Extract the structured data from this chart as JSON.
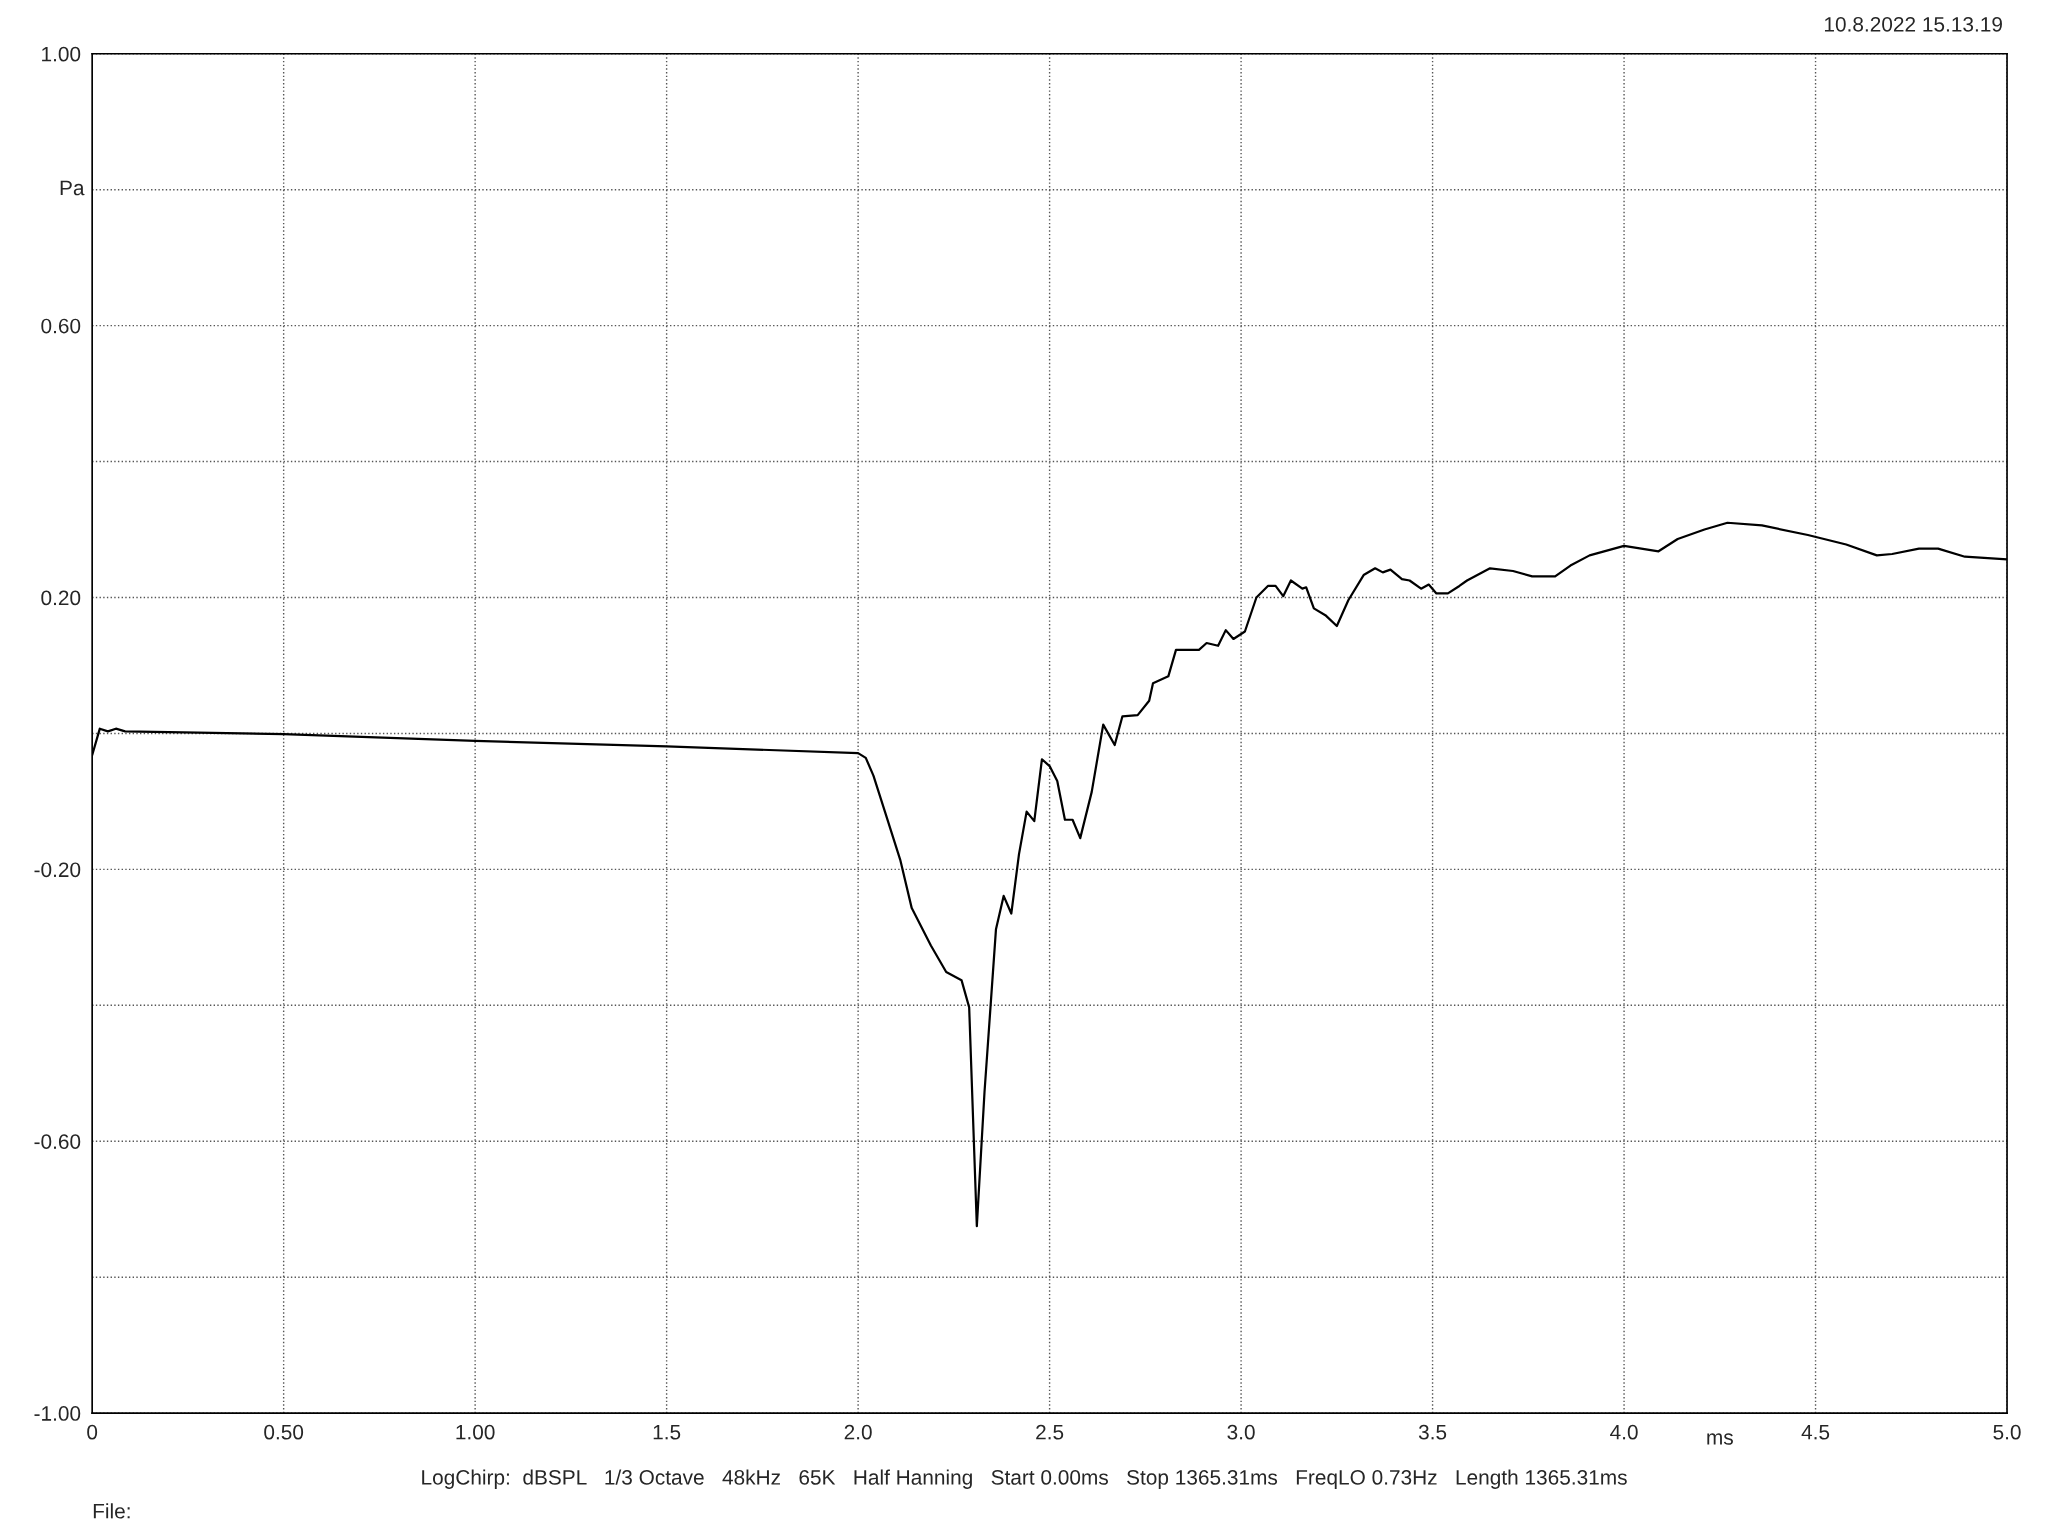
{
  "chart_data": {
    "type": "line",
    "xlabel": "ms",
    "ylabel": "Pa",
    "annotations": [
      "10.8.2022 15.13.19",
      "LogChirp:  dBSPL   1/3 Octave   48kHz   65K   Half Hanning   Start 0.00ms   Stop 1365.31ms   FreqLO 0.73Hz   Length 1365.31ms",
      "File:"
    ],
    "xlim": [
      0,
      5.0
    ],
    "xticks": [
      0,
      {
        "value": 0.5,
        "label": "0.50"
      },
      {
        "value": 1.0,
        "label": "1.00"
      },
      1.5,
      {
        "value": 2.0,
        "label": "2.0"
      },
      2.5,
      {
        "value": 3.0,
        "label": "3.0"
      },
      3.5,
      {
        "value": 4.0,
        "label": "4.0"
      },
      4.5,
      {
        "value": 5.0,
        "label": "5.0"
      }
    ],
    "ylim": [
      -1.0,
      1.0
    ],
    "yticks": [
      {
        "value": -1.0,
        "label": "-1.00"
      },
      {
        "value": -0.8,
        "label": null
      },
      {
        "value": -0.6,
        "label": "-0.60"
      },
      {
        "value": -0.4,
        "label": null
      },
      {
        "value": -0.2,
        "label": "-0.20"
      },
      {
        "value": 0,
        "label": null
      },
      {
        "value": 0.2,
        "label": "0.20"
      },
      {
        "value": 0.4,
        "label": null
      },
      {
        "value": 0.6,
        "label": "0.60"
      },
      {
        "value": 0.8,
        "label": null
      },
      {
        "value": 1.0,
        "label": "1.00"
      }
    ],
    "grid": true,
    "line_style": "solid",
    "marker": "none",
    "series": [
      {
        "color": "#000000",
        "x": [
          0,
          0.02,
          0.041,
          0.062,
          0.086,
          0.5,
          1.0,
          1.5,
          2.0,
          2.02,
          2.04,
          2.07,
          2.11,
          2.14,
          2.19,
          2.23,
          2.27,
          2.29,
          2.31,
          2.33,
          2.36,
          2.38,
          2.4,
          2.42,
          2.44,
          2.46,
          2.48,
          2.5,
          2.52,
          2.54,
          2.56,
          2.58,
          2.61,
          2.64,
          2.67,
          2.69,
          2.73,
          2.76,
          2.77,
          2.81,
          2.83,
          2.89,
          2.91,
          2.94,
          2.96,
          2.98,
          3.01,
          3.04,
          3.07,
          3.09,
          3.11,
          3.13,
          3.16,
          3.17,
          3.19,
          3.22,
          3.25,
          3.28,
          3.32,
          3.35,
          3.37,
          3.39,
          3.42,
          3.44,
          3.47,
          3.49,
          3.51,
          3.54,
          3.57,
          3.59,
          3.65,
          3.71,
          3.76,
          3.82,
          3.86,
          3.91,
          4.0,
          4.09,
          4.14,
          4.21,
          4.27,
          4.36,
          4.48,
          4.58,
          4.66,
          4.7,
          4.77,
          4.82,
          4.89,
          5.0
        ],
        "values": [
          -0.032,
          0.007,
          0.003,
          0.007,
          0.003,
          -0.001,
          -0.011,
          -0.019,
          -0.029,
          -0.036,
          -0.062,
          -0.115,
          -0.186,
          -0.257,
          -0.312,
          -0.351,
          -0.363,
          -0.403,
          -0.725,
          -0.528,
          -0.288,
          -0.239,
          -0.265,
          -0.178,
          -0.115,
          -0.129,
          -0.038,
          -0.048,
          -0.07,
          -0.127,
          -0.127,
          -0.154,
          -0.086,
          0.013,
          -0.017,
          0.025,
          0.027,
          0.048,
          0.074,
          0.084,
          0.123,
          0.123,
          0.133,
          0.129,
          0.152,
          0.139,
          0.15,
          0.2,
          0.217,
          0.217,
          0.202,
          0.225,
          0.213,
          0.215,
          0.184,
          0.174,
          0.158,
          0.196,
          0.233,
          0.243,
          0.237,
          0.241,
          0.227,
          0.225,
          0.213,
          0.219,
          0.206,
          0.206,
          0.217,
          0.225,
          0.243,
          0.239,
          0.231,
          0.231,
          0.247,
          0.262,
          0.276,
          0.268,
          0.286,
          0.3,
          0.31,
          0.306,
          0.292,
          0.278,
          0.262,
          0.264,
          0.272,
          0.272,
          0.26,
          0.256
        ]
      }
    ]
  }
}
